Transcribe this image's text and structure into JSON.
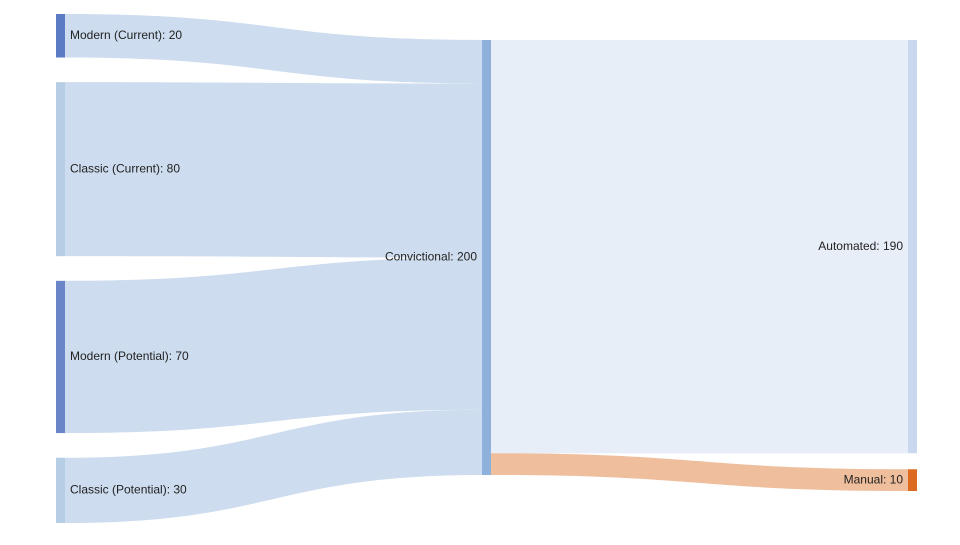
{
  "chart_data": {
    "type": "sankey",
    "title": "",
    "units": "",
    "nodes": [
      {
        "id": "modern_current",
        "label": "Modern (Current): 20",
        "value": 20,
        "column": 0,
        "color": "#5b7cc4"
      },
      {
        "id": "classic_current",
        "label": "Classic (Current): 80",
        "value": 80,
        "column": 0,
        "color": "#b6cde6"
      },
      {
        "id": "modern_potential",
        "label": "Modern (Potential): 70",
        "value": 70,
        "column": 0,
        "color": "#6a86c9"
      },
      {
        "id": "classic_potential",
        "label": "Classic (Potential): 30",
        "value": 30,
        "column": 0,
        "color": "#b6cde6"
      },
      {
        "id": "convictional",
        "label": "Convictional: 200",
        "value": 200,
        "column": 1,
        "color": "#8eb1dc"
      },
      {
        "id": "automated",
        "label": "Automated: 190",
        "value": 190,
        "column": 2,
        "color": "#c9d8ee"
      },
      {
        "id": "manual",
        "label": "Manual: 10",
        "value": 10,
        "column": 2,
        "color": "#dd6b1f"
      }
    ],
    "links": [
      {
        "source": "modern_current",
        "target": "convictional",
        "value": 20,
        "color": "#cddcee"
      },
      {
        "source": "classic_current",
        "target": "convictional",
        "value": 80,
        "color": "#cddcee"
      },
      {
        "source": "modern_potential",
        "target": "convictional",
        "value": 70,
        "color": "#cddcee"
      },
      {
        "source": "classic_potential",
        "target": "convictional",
        "value": 30,
        "color": "#cddcee"
      },
      {
        "source": "convictional",
        "target": "automated",
        "value": 190,
        "color": "#e8eef8"
      },
      {
        "source": "convictional",
        "target": "manual",
        "value": 10,
        "color": "#efbe9d"
      }
    ]
  }
}
